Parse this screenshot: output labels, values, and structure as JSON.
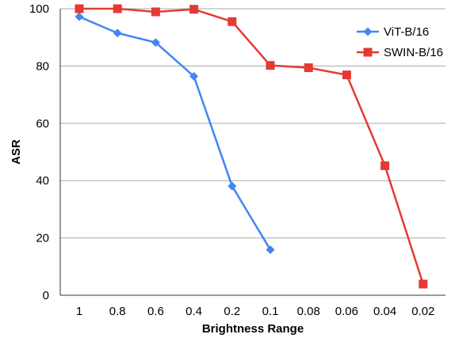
{
  "chart_data": {
    "type": "line",
    "title": "",
    "xlabel": "Brightness Range",
    "ylabel": "ASR",
    "categories": [
      "1",
      "0.8",
      "0.6",
      "0.4",
      "0.2",
      "0.1",
      "0.08",
      "0.06",
      "0.04",
      "0.02"
    ],
    "ylim": [
      0,
      100
    ],
    "yticks": [
      0,
      20,
      40,
      60,
      80,
      100
    ],
    "grid": "horizontal",
    "legend_position": "top-right",
    "series": [
      {
        "name": "ViT-B/16",
        "color": "#4285f4",
        "marker": "diamond",
        "values": [
          97.2,
          91.5,
          88.2,
          76.4,
          38.1,
          15.9,
          null,
          null,
          null,
          null
        ]
      },
      {
        "name": "SWIN-B/16",
        "color": "#e53935",
        "marker": "square",
        "values": [
          100,
          100,
          98.9,
          99.8,
          95.5,
          80.2,
          79.4,
          76.9,
          45.2,
          3.9
        ]
      }
    ]
  }
}
